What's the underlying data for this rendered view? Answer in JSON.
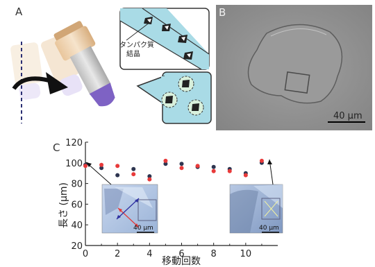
{
  "panels": {
    "a": {
      "letter": "A",
      "callout_label_line1": "タンパク質",
      "callout_label_line2": "結晶"
    },
    "b": {
      "letter": "B",
      "scalebar": "40 μm"
    },
    "c": {
      "letter": "C",
      "inset_left_scalebar": "40 μm",
      "inset_right_scalebar": "40 μm"
    }
  },
  "colors": {
    "series_black": "#2e3550",
    "series_red": "#e83a3a",
    "callout_bg": "#a9dbe6",
    "capillary_purple": "#7e62c4"
  },
  "chart_data": {
    "type": "scatter",
    "xlabel": "移動回数",
    "ylabel": "長さ (μm)",
    "xlim": [
      0,
      12
    ],
    "ylim": [
      20,
      120
    ],
    "xticks": [
      0,
      2,
      4,
      6,
      8,
      10
    ],
    "yticks": [
      20,
      40,
      60,
      80,
      100,
      120
    ],
    "grid": false,
    "series": [
      {
        "color": "#2e3550",
        "points": [
          [
            0,
            98
          ],
          [
            1,
            95
          ],
          [
            2,
            88
          ],
          [
            3,
            94
          ],
          [
            4,
            87
          ],
          [
            5,
            99
          ],
          [
            6,
            99
          ],
          [
            7,
            96
          ],
          [
            8,
            96
          ],
          [
            9,
            94
          ],
          [
            10,
            90
          ],
          [
            11,
            100
          ]
        ]
      },
      {
        "color": "#e83a3a",
        "points": [
          [
            0,
            97
          ],
          [
            1,
            98
          ],
          [
            2,
            97
          ],
          [
            3,
            89
          ],
          [
            4,
            84
          ],
          [
            5,
            102
          ],
          [
            6,
            95
          ],
          [
            7,
            97
          ],
          [
            8,
            92
          ],
          [
            9,
            92
          ],
          [
            10,
            88
          ],
          [
            11,
            102
          ]
        ]
      }
    ]
  }
}
